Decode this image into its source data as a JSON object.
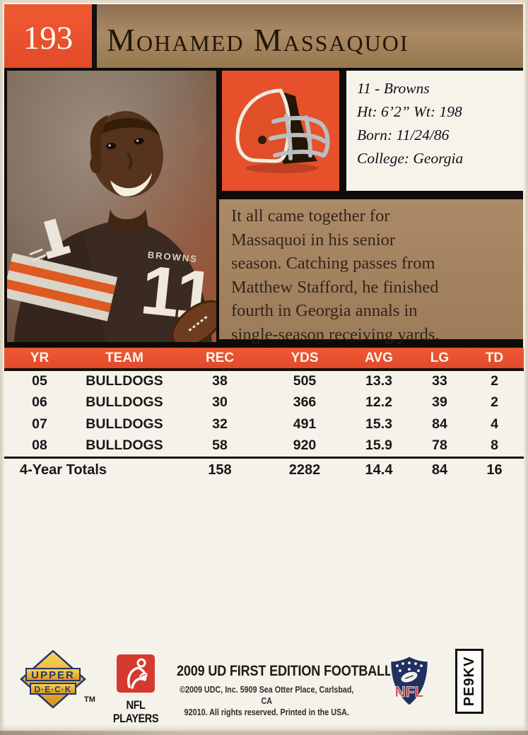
{
  "card": {
    "number": "193",
    "player_name": "Mohamed Massaquoi"
  },
  "info_box": {
    "text": "11 - Browns\nHt: 6’2”  Wt: 198\nBorn: 11/24/86\nCollege: Georgia"
  },
  "bio": {
    "text": "It all came together for\nMassaquoi in his senior\nseason. Catching passes from\nMatthew Stafford, he finished\nfourth in Georgia annals in\nsingle-season receiving yards."
  },
  "photo": {
    "jersey_number": "11",
    "jersey_wordmark": "BROWNS"
  },
  "stats_table": {
    "columns": [
      "YR",
      "TEAM",
      "REC",
      "YDS",
      "AVG",
      "LG",
      "TD"
    ],
    "rows": [
      [
        "05",
        "BULLDOGS",
        "38",
        "505",
        "13.3",
        "33",
        "2"
      ],
      [
        "06",
        "BULLDOGS",
        "30",
        "366",
        "12.2",
        "39",
        "2"
      ],
      [
        "07",
        "BULLDOGS",
        "32",
        "491",
        "15.3",
        "84",
        "4"
      ],
      [
        "08",
        "BULLDOGS",
        "58",
        "920",
        "15.9",
        "78",
        "8"
      ]
    ],
    "totals": {
      "label": "4-Year Totals",
      "values": [
        "158",
        "2282",
        "14.4",
        "84",
        "16"
      ]
    }
  },
  "footer": {
    "upper_deck": {
      "line1": "UPPER",
      "line2": "D·E·C·K",
      "tm": "TM"
    },
    "nfl_players_label": "NFL PLAYERS",
    "set_title": "2009 UD FIRST EDITION FOOTBALL",
    "copyright_line1": "©2009 UDC, Inc. 5909 Sea Otter Place, Carlsbad, CA",
    "copyright_line2": "92010. All rights reserved. Printed in the USA.",
    "nfl_shield_label": "NFL",
    "code": "PE9KV"
  },
  "icons": {
    "helmet": "browns-helmet-icon",
    "upper_deck": "upper-deck-logo",
    "nfl_players": "nfl-players-logo",
    "nfl_shield": "nfl-shield-logo"
  },
  "colors": {
    "accent_orange": "#e6512c",
    "panel_brown": "#a38160",
    "section_black": "#0e0b08",
    "card_background": "#f5f2ea",
    "nfl_navy": "#20305f",
    "nfl_red": "#cf2b30",
    "nflpa_red": "#d6392e",
    "ud_gold": "#f2c244"
  }
}
